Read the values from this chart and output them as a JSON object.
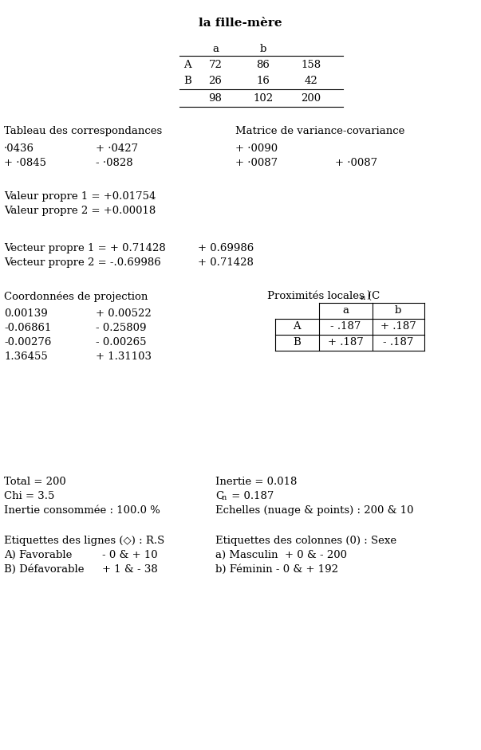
{
  "title_line2": "la fille-mère",
  "bg_color": "#ffffff",
  "font_family": "DejaVu Serif",
  "main_table": {
    "col_headers": [
      "a",
      "b"
    ],
    "rows": [
      [
        "A",
        "72",
        "86",
        "158"
      ],
      [
        "B",
        "26",
        "16",
        "42"
      ],
      [
        "",
        "98",
        "102",
        "200"
      ]
    ]
  },
  "section_correspondances": {
    "title": "Tableau des correspondances",
    "matrix": [
      [
        "·0436",
        "+ ·0427"
      ],
      [
        "+ ·0845",
        "- ·0828"
      ]
    ]
  },
  "section_variance": {
    "title": "Matrice de variance-covariance",
    "matrix": [
      [
        "+ ·0090",
        ""
      ],
      [
        "+ ·0087",
        "+ ·0087"
      ]
    ]
  },
  "valeurs_propres": [
    "Valeur propre 1 = +0.01754",
    "Valeur propre 2 = +0.00018"
  ],
  "vecteurs_propres": {
    "left": [
      "Vecteur propre 1 = + 0.71428",
      "Vecteur propre 2 = -.0.69986"
    ],
    "right": [
      "+ 0.69986",
      "+ 0.71428"
    ]
  },
  "coordonnees": {
    "title": "Coordonnées de projection",
    "left": [
      "0.00139",
      "-0.06861",
      "-0.00276",
      "1.36455"
    ],
    "right": [
      "+ 0.00522",
      "- 0.25809",
      "- 0.00265",
      "+ 1.31103"
    ]
  },
  "proximites": {
    "title_base": "Proximités locales (C",
    "title_sub": "n",
    "title_end": ")",
    "col_headers": [
      "a",
      "b"
    ],
    "rows": [
      [
        "A",
        "- .187",
        "+ .187"
      ],
      [
        "B",
        "+ .187",
        "- .187"
      ]
    ]
  },
  "stats": {
    "left": [
      "Total = 200",
      "Chi = 3.5",
      "Inertie consommée : 100.0 %"
    ],
    "right_inertie": "Inertie = 0.018",
    "right_cn_base": "C",
    "right_cn_sub": "n",
    "right_cn_val": " = 0.187",
    "right_echelles": "Echelles (nuage & points) : 200 & 10"
  },
  "etiquettes": {
    "left_title": "Etiquettes des lignes (◇) : R.S",
    "left_items": [
      [
        "A) Favorable",
        "- 0 & + 10"
      ],
      [
        "B) Défavorable",
        "+ 1 & - 38"
      ]
    ],
    "right_title": "Etiquettes des colonnes (0) : Sexe",
    "right_items": [
      "a) Masculin  + 0 & - 200",
      "b) Féminin - 0 & + 192"
    ]
  }
}
